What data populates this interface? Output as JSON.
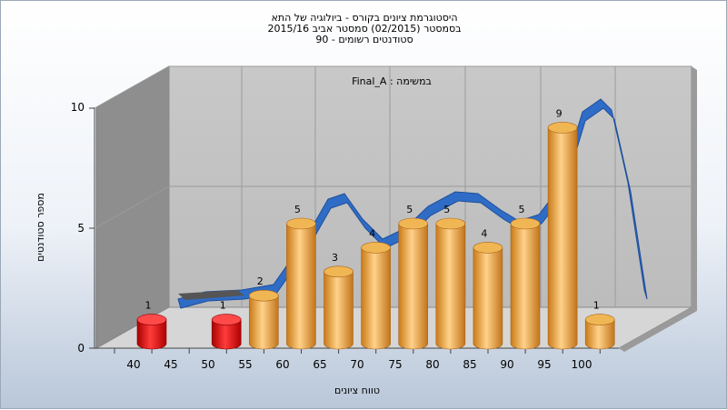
{
  "header": {
    "title_lines": [
      "היסטוגרמת ציונים בקורס - ביולוגיה של התא",
      "בסמסטר  (02/2015)  סמסטר אביב 2015/16",
      "סטודנטים רשומים - 90"
    ]
  },
  "chart_data": {
    "type": "bar",
    "subtitle": "במשימה : Final_A",
    "xlabel": "טווח ציונים",
    "ylabel": "מספר סטודנטים",
    "x_ticks": [
      "40",
      "45",
      "50",
      "55",
      "60",
      "65",
      "70",
      "75",
      "80",
      "85",
      "90",
      "95",
      "100"
    ],
    "y_ticks": [
      "0",
      "5",
      "10"
    ],
    "ylim": [
      0,
      10
    ],
    "grid": true,
    "colors": {
      "failing": "#dd1414",
      "passing": "#e8a540",
      "curve": "#2f6cc6"
    },
    "bars": [
      {
        "range": "40-45",
        "value": 1,
        "status": "failing"
      },
      {
        "range": "45-50",
        "value": 0,
        "status": "failing"
      },
      {
        "range": "50-55",
        "value": 1,
        "status": "failing"
      },
      {
        "range": "55-60",
        "value": 2,
        "status": "passing"
      },
      {
        "range": "60-65",
        "value": 5,
        "status": "passing"
      },
      {
        "range": "65-70",
        "value": 3,
        "status": "passing"
      },
      {
        "range": "70-75",
        "value": 4,
        "status": "passing"
      },
      {
        "range": "75-80",
        "value": 5,
        "status": "passing"
      },
      {
        "range": "80-85",
        "value": 5,
        "status": "passing"
      },
      {
        "range": "85-90",
        "value": 4,
        "status": "passing"
      },
      {
        "range": "90-95",
        "value": 5,
        "status": "passing"
      },
      {
        "range": "95-100",
        "value": 9,
        "status": "passing"
      },
      {
        "range": "100",
        "value": 1,
        "status": "passing"
      }
    ]
  }
}
